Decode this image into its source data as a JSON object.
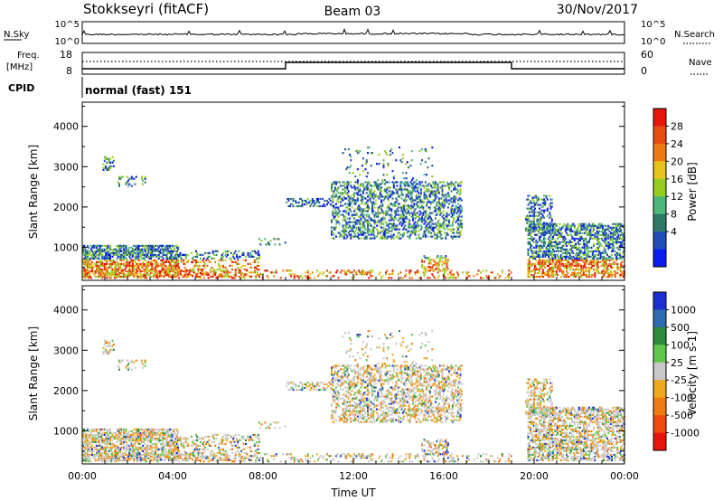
{
  "header": {
    "station": "Stokkseyri (fitACF)",
    "beam": "Beam 03",
    "date": "30/Nov/2017"
  },
  "noise_panel": {
    "left_label": "N.Sky",
    "right_label": "N.Search",
    "left_ticks": [
      "10^5",
      "10^0"
    ],
    "right_ticks": [
      "10^5",
      "10^0"
    ]
  },
  "freq_panel": {
    "left_label_1": "Freq.",
    "left_label_2": "[MHz]",
    "left_ticks": [
      "18",
      "8"
    ],
    "right_ticks": [
      "60",
      "0"
    ],
    "right_label": "Nave",
    "nave_steps": [
      {
        "start": 0,
        "end": 9,
        "level": "low"
      },
      {
        "start": 9,
        "end": 19,
        "level": "high"
      },
      {
        "start": 19,
        "end": 24,
        "level": "low"
      }
    ]
  },
  "cpid": {
    "label": "CPID",
    "mode": "normal (fast) 151"
  },
  "chart_data": [
    {
      "type": "heatmap",
      "name": "power",
      "ylabel": "Slant Range [km]",
      "yticks": [
        "1000",
        "2000",
        "3000",
        "4000"
      ],
      "colorbar_label": "Power [dB]",
      "colorbar_ticks": [
        "28",
        "24",
        "20",
        "16",
        "12",
        "8",
        "4"
      ],
      "colors": [
        "#0a1cf0",
        "#1f4fb5",
        "#2f7a66",
        "#4db87a",
        "#96cc1f",
        "#e6c21a",
        "#f07a12",
        "#e84a10",
        "#e8140a"
      ]
    },
    {
      "type": "heatmap",
      "name": "velocity",
      "ylabel": "Slant Range [km]",
      "yticks": [
        "1000",
        "2000",
        "3000",
        "4000"
      ],
      "colorbar_label": "Velocity [m s-1]",
      "colorbar_ticks": [
        "1000",
        "500",
        "100",
        "25",
        "-25",
        "-100",
        "-500",
        "-1000"
      ],
      "colors": [
        "#1c2fd4",
        "#2f6bb0",
        "#2d8a3e",
        "#5fc84a",
        "#c8c8c8",
        "#f0a91c",
        "#f07c10",
        "#f04a10",
        "#e8140a"
      ]
    }
  ],
  "x_axis": {
    "ticks": [
      "00:00",
      "04:00",
      "08:00",
      "12:00",
      "16:00",
      "20:00",
      "00:00"
    ],
    "label": "Time UT"
  }
}
